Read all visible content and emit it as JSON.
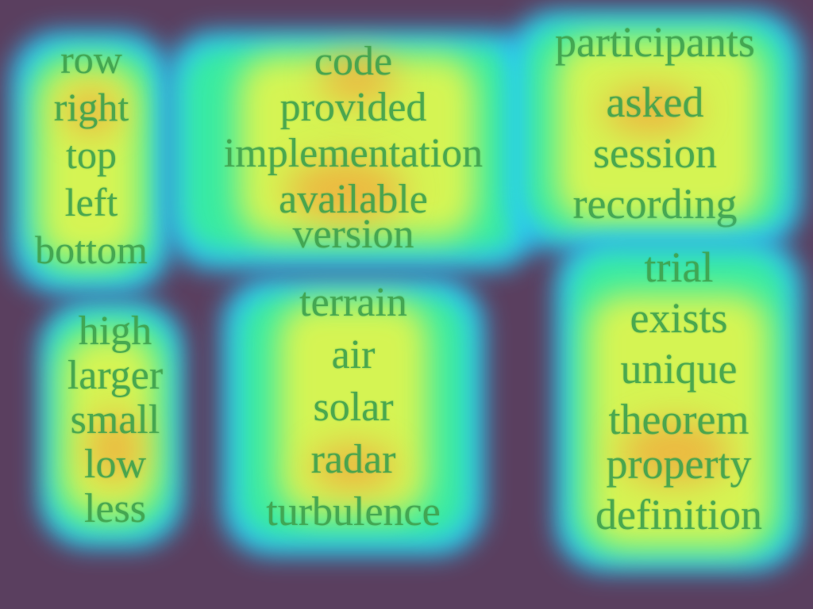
{
  "clusters": {
    "left_top": [
      "row",
      "right",
      "top",
      "left",
      "bottom"
    ],
    "left_bottom": [
      "high",
      "larger",
      "small",
      "low",
      "less"
    ],
    "mid_top": [
      "code",
      "provided",
      "implementation",
      "available",
      "version"
    ],
    "mid_bottom": [
      "terrain",
      "air",
      "solar",
      "radar",
      "turbulence"
    ],
    "right_top": [
      "participants",
      "asked",
      "session",
      "recording"
    ],
    "right_bottom": [
      "trial",
      "exists",
      "unique",
      "theorem",
      "property",
      "definition"
    ]
  },
  "colors": {
    "background": "#5a3f5f",
    "glow_outer": "#29c7ff",
    "glow_mid": "#39f09a",
    "glow_inner": "#e7f64b",
    "glow_hot": "#f4a53a",
    "text": "#3fa24e"
  }
}
